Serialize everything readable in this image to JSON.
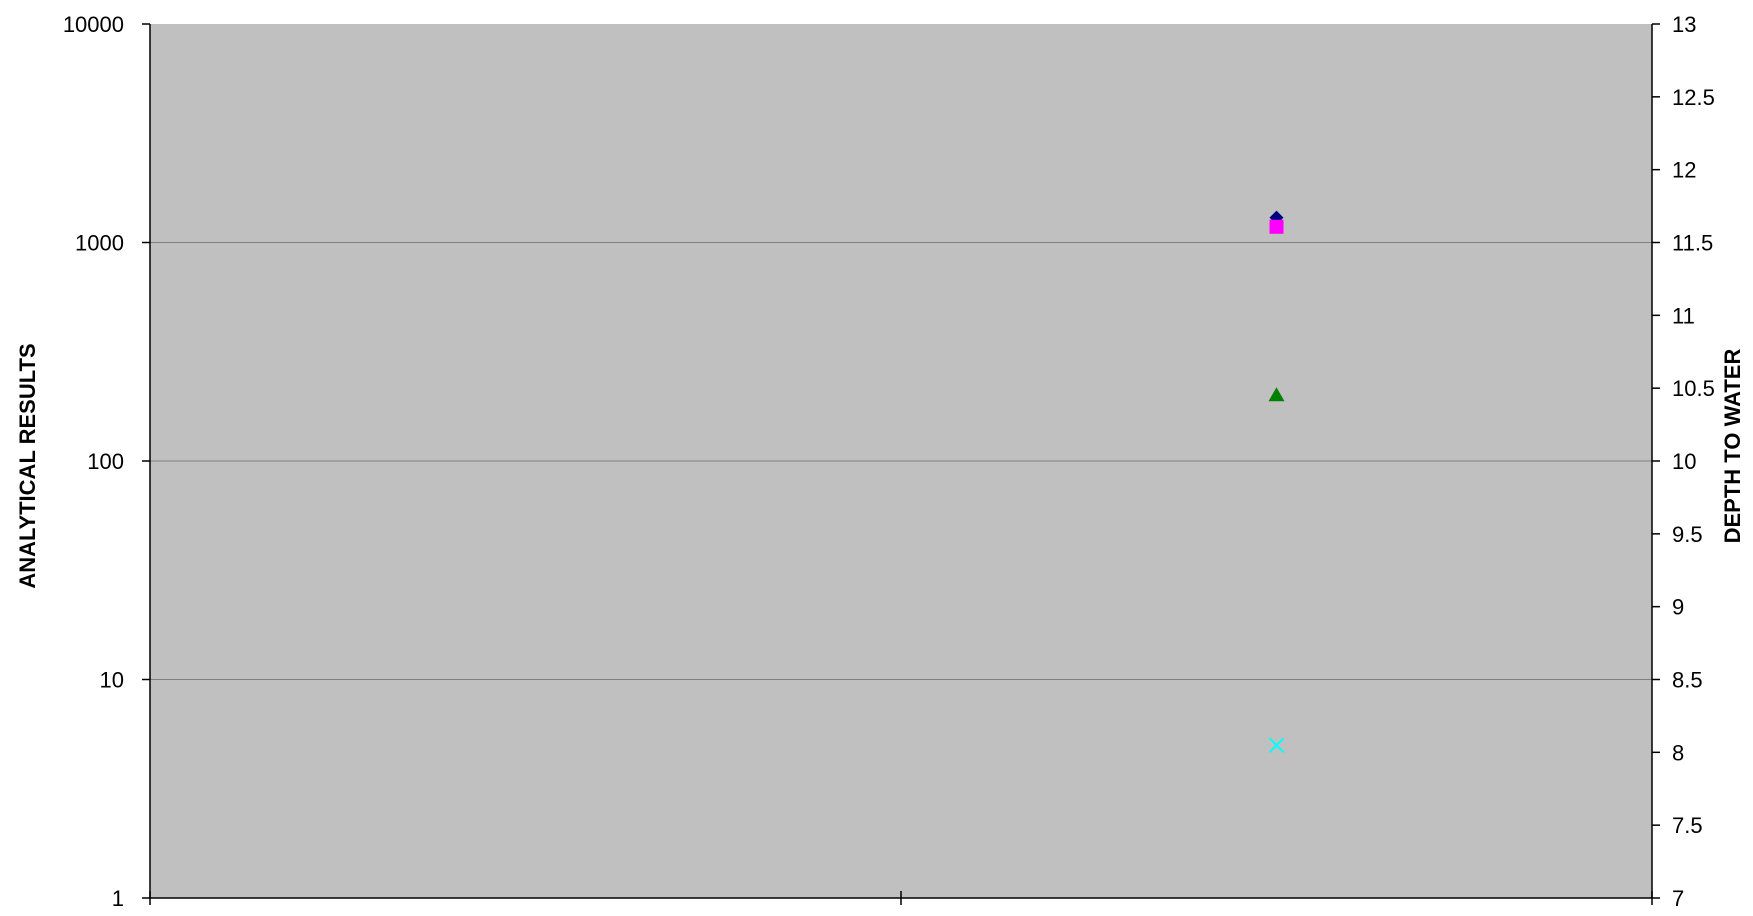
{
  "chart_data": {
    "type": "scatter",
    "title": "",
    "ylabel": "ANALYTICAL RESULTS",
    "y2label": "DEPTH TO WATER",
    "yscale": "log",
    "ylim": [
      1,
      10000
    ],
    "yticks": [
      1,
      10,
      100,
      1000,
      10000
    ],
    "ytick_labels": [
      "1",
      "10",
      "100",
      "1000",
      "10000"
    ],
    "y2lim": [
      7,
      13
    ],
    "y2ticks": [
      7,
      7.5,
      8,
      8.5,
      9,
      9.5,
      10,
      10.5,
      11,
      11.5,
      12,
      12.5,
      13
    ],
    "y2tick_labels": [
      "7",
      "7.5",
      "8",
      "8.5",
      "9",
      "9.5",
      "10",
      "10.5",
      "11",
      "11.5",
      "12",
      "12.5",
      "13"
    ],
    "xlim": [
      0,
      2
    ],
    "xticks": [
      0,
      1,
      2
    ],
    "grid": true,
    "plot_background": "#C0C0C0",
    "gridline_color": "#808080",
    "series": [
      {
        "marker": "diamond",
        "color": "#000080",
        "points": [
          {
            "x": 1.5,
            "y": 1300
          }
        ]
      },
      {
        "marker": "square",
        "color": "#FF00FF",
        "points": [
          {
            "x": 1.5,
            "y": 1180
          }
        ]
      },
      {
        "marker": "triangle",
        "color": "#008000",
        "points": [
          {
            "x": 1.5,
            "y": 200
          }
        ]
      },
      {
        "marker": "x",
        "color": "#00FFFF",
        "points": [
          {
            "x": 1.5,
            "y": 5
          }
        ]
      }
    ]
  }
}
